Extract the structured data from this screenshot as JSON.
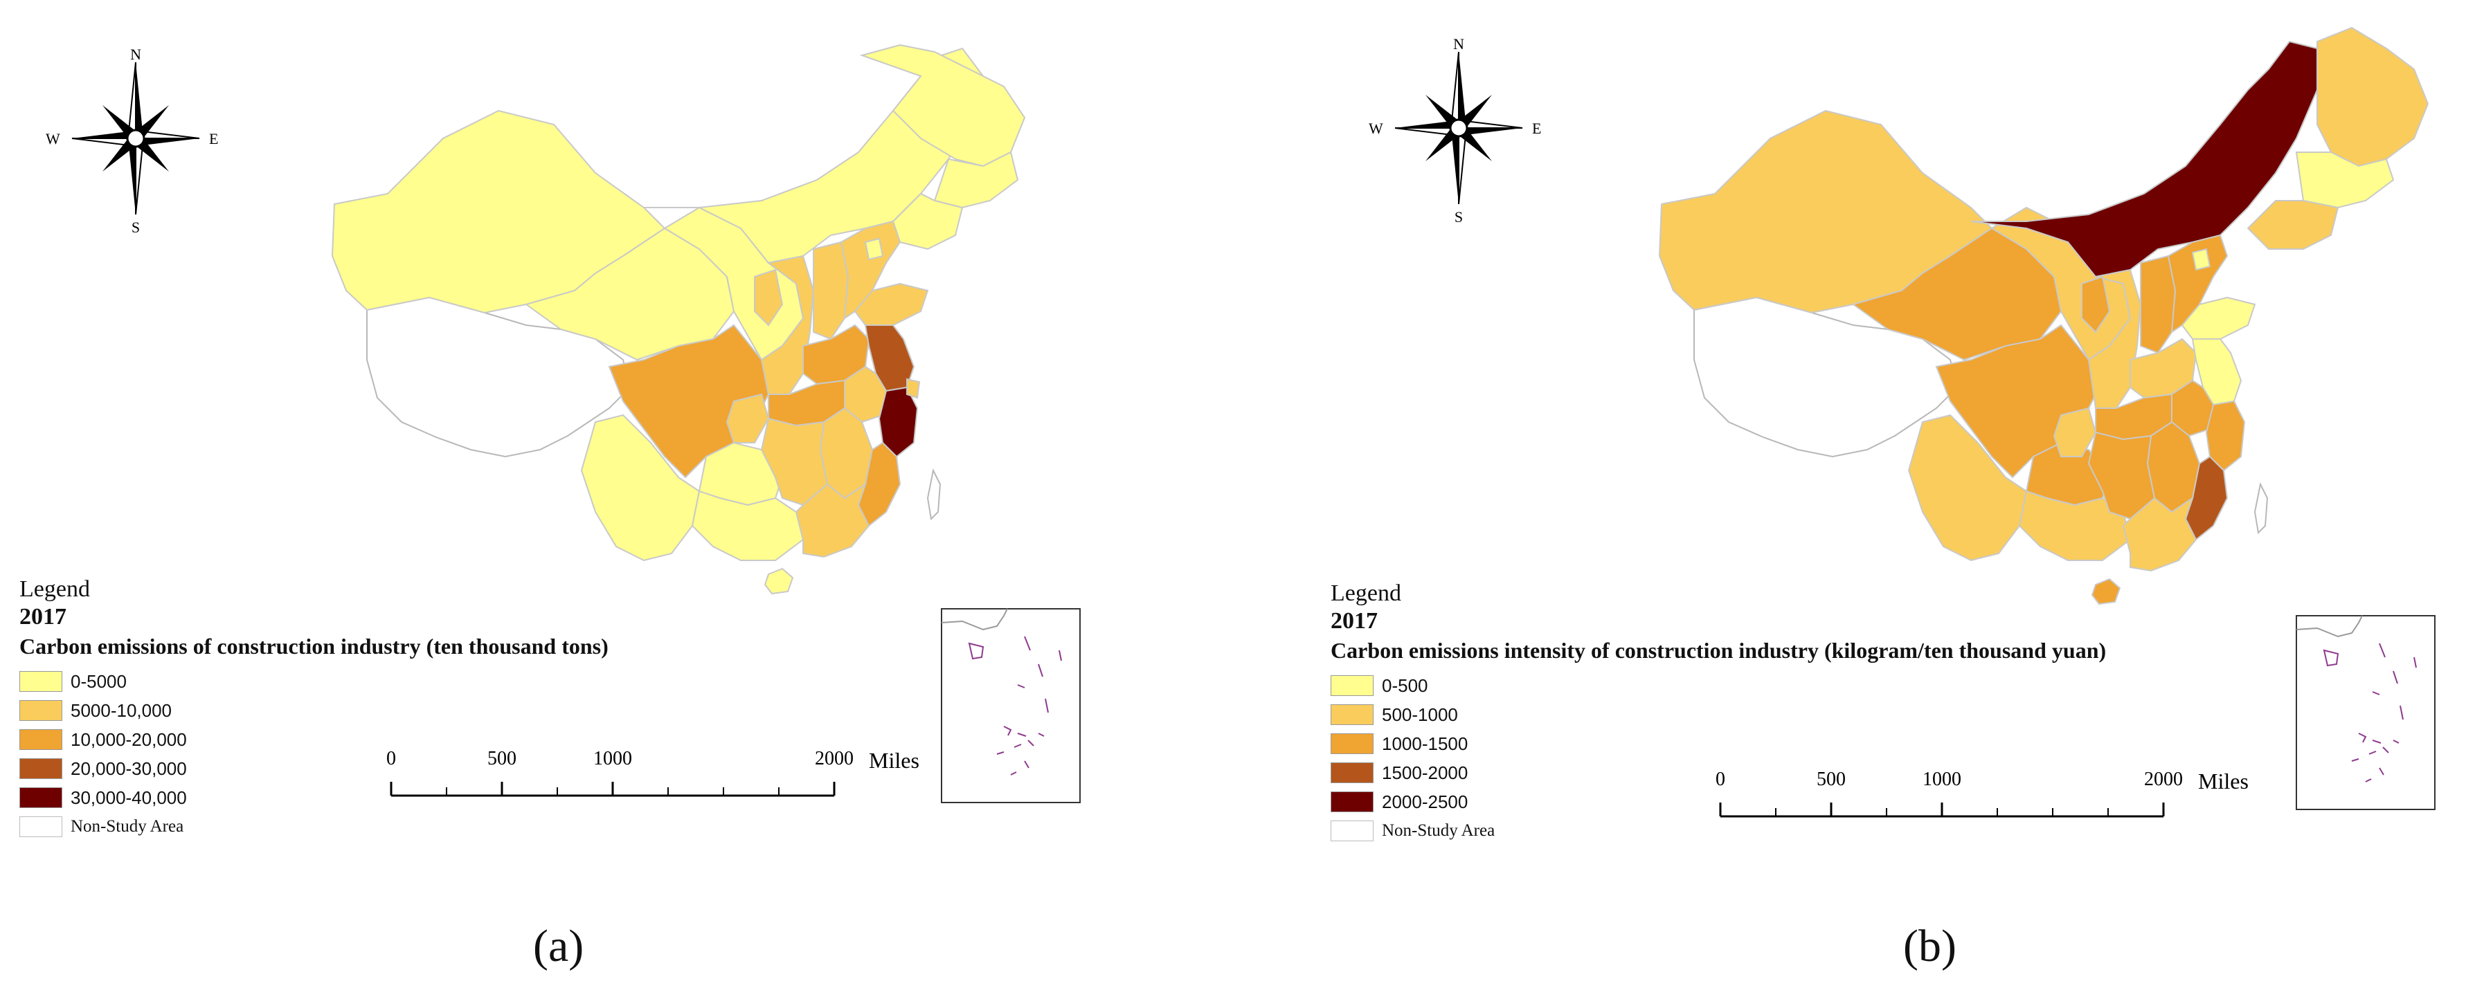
{
  "panels": [
    {
      "id": "a",
      "label": "(a)",
      "legend": {
        "heading": "Legend",
        "year": "2017",
        "title": "Carbon emissions of construction industry (ten thousand tons)",
        "classes": [
          {
            "label": "0-5000",
            "color": "#FFFE8E"
          },
          {
            "label": "5000-10,000",
            "color": "#F9CC5C"
          },
          {
            "label": "10,000-20,000",
            "color": "#F0A431"
          },
          {
            "label": "20,000-30,000",
            "color": "#B4561B"
          },
          {
            "label": "30,000-40,000",
            "color": "#6E0000"
          }
        ],
        "non_study": {
          "label": "Non-Study Area",
          "color": "#FFFFFF"
        }
      },
      "scale_bar": {
        "ticks": [
          "0",
          "500",
          "1000",
          "2000"
        ],
        "unit": "Miles"
      },
      "compass": {
        "n": "N",
        "s": "S",
        "e": "E",
        "w": "W"
      }
    },
    {
      "id": "b",
      "label": "(b)",
      "legend": {
        "heading": "Legend",
        "year": "2017",
        "title": "Carbon emissions intensity of construction industry (kilogram/ten thousand yuan)",
        "classes": [
          {
            "label": "0-500",
            "color": "#FFFE8E"
          },
          {
            "label": "500-1000",
            "color": "#F9CC5C"
          },
          {
            "label": "1000-1500",
            "color": "#F0A431"
          },
          {
            "label": "1500-2000",
            "color": "#B4561B"
          },
          {
            "label": "2000-2500",
            "color": "#6E0000"
          }
        ],
        "non_study": {
          "label": "Non-Study Area",
          "color": "#FFFFFF"
        }
      },
      "scale_bar": {
        "ticks": [
          "0",
          "500",
          "1000",
          "2000"
        ],
        "unit": "Miles"
      },
      "compass": {
        "n": "N",
        "s": "S",
        "e": "E",
        "w": "W"
      }
    }
  ],
  "colors": {
    "border": "#B8B8B8",
    "inset_islands": "#8E3A8E"
  }
}
